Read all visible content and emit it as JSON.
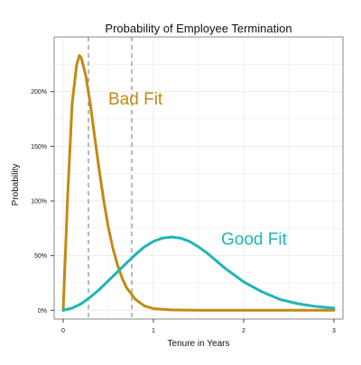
{
  "chart_data": {
    "type": "line",
    "title": "Probability of Employee Termination",
    "xlabel": "Tenure in Years",
    "ylabel": "Probability",
    "xlim": [
      -0.1,
      3.1
    ],
    "ylim": [
      -0.08,
      2.5
    ],
    "x_ticks": [
      0,
      1,
      2,
      3
    ],
    "x_tick_labels": [
      "0",
      "1",
      "2",
      "3"
    ],
    "y_ticks": [
      0,
      0.5,
      1.0,
      1.5,
      2.0
    ],
    "y_tick_labels": [
      "0%",
      "50%",
      "100%",
      "150%",
      "200%"
    ],
    "grid": true,
    "legend": "none",
    "reference_lines": [
      0.28,
      0.76
    ],
    "colors": {
      "bad_fit": "#c38a12",
      "good_fit": "#1fb5b8",
      "ref_line": "#8a8a8a",
      "grid": "#ececec",
      "frame": "#8a8a8a"
    },
    "series": [
      {
        "name": "Bad Fit",
        "color": "#c38a12",
        "x": [
          0.0,
          0.05,
          0.1,
          0.15,
          0.18,
          0.2,
          0.25,
          0.3,
          0.35,
          0.4,
          0.45,
          0.5,
          0.55,
          0.6,
          0.65,
          0.7,
          0.8,
          0.9,
          1.0,
          1.2,
          1.5,
          2.0,
          2.5,
          3.0
        ],
        "values": [
          0.0,
          1.05,
          1.9,
          2.25,
          2.33,
          2.31,
          2.15,
          1.89,
          1.58,
          1.28,
          1.0,
          0.76,
          0.57,
          0.42,
          0.3,
          0.21,
          0.1,
          0.04,
          0.015,
          0.003,
          0.0,
          0.0,
          0.0,
          0.0
        ]
      },
      {
        "name": "Good Fit",
        "color": "#1fb5b8",
        "x": [
          0.0,
          0.1,
          0.2,
          0.3,
          0.4,
          0.5,
          0.6,
          0.7,
          0.8,
          0.9,
          1.0,
          1.1,
          1.2,
          1.3,
          1.4,
          1.5,
          1.6,
          1.7,
          1.8,
          1.9,
          2.0,
          2.2,
          2.4,
          2.6,
          2.8,
          3.0
        ],
        "values": [
          0.0,
          0.02,
          0.06,
          0.12,
          0.19,
          0.27,
          0.35,
          0.43,
          0.51,
          0.58,
          0.63,
          0.66,
          0.67,
          0.66,
          0.63,
          0.58,
          0.52,
          0.45,
          0.38,
          0.32,
          0.26,
          0.17,
          0.1,
          0.06,
          0.035,
          0.02
        ]
      }
    ],
    "annotations": [
      {
        "text": "Bad Fit",
        "x": 0.5,
        "y": 1.88,
        "color": "#c38a12"
      },
      {
        "text": "Good Fit",
        "x": 1.75,
        "y": 0.6,
        "color": "#1fb5b8"
      }
    ]
  }
}
